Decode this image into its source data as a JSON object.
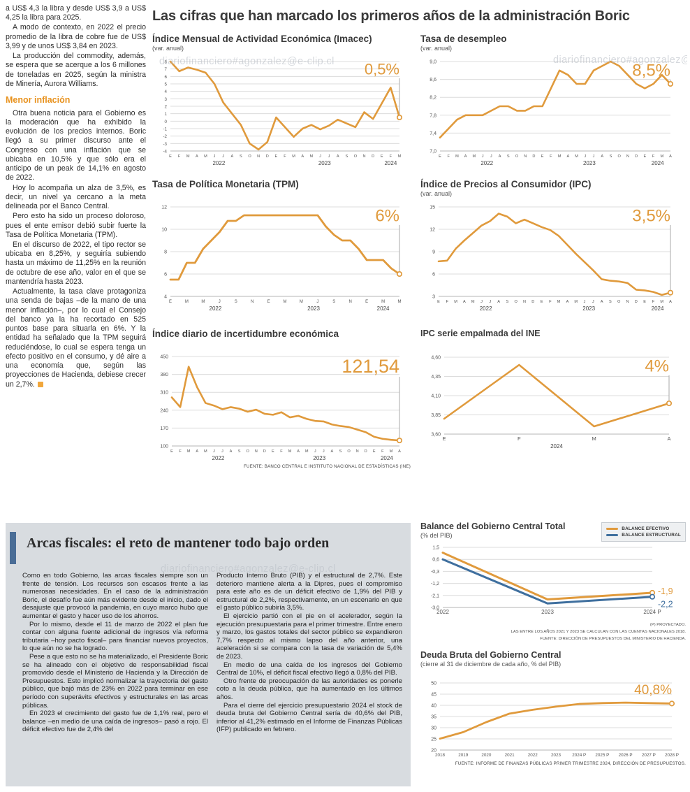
{
  "watermark": {
    "text": "diariofinanciero#agonzalez@e-clip.cl"
  },
  "main_title": "Las cifras que han marcado los primeros años de la administración Boric",
  "source_top": "FUENTE: BANCO CENTRAL E INSTITUTO NACIONAL DE ESTADÍSTICAS (INE)",
  "article_left": {
    "lead_paragraphs": [
      "a US$ 4,3 la libra y desde US$ 3,9 a US$ 4,25 la libra para 2025.",
      "A modo de contexto, en 2022 el precio promedio de la libra de cobre fue de US$ 3,99 y de unos US$ 3,84 en 2023.",
      "La producción del commodity, además, se espera que se acerque a los 6 millones de toneladas en 2025, según la ministra de Minería, Aurora Williams."
    ],
    "subhead": "Menor inflación",
    "body_paragraphs": [
      "Otra buena noticia para el Gobierno es la moderación que ha exhibido la evolución de los precios internos. Boric llegó a su primer discurso ante el Congreso con una inflación que se ubicaba en 10,5% y que sólo era el anticipo de un peak de 14,1% en agosto de 2022.",
      "Hoy lo acompaña un alza de 3,5%, es decir, un nivel ya cercano a la meta delineada por el Banco Central.",
      "Pero esto ha sido un proceso doloroso, pues el ente emisor debió subir fuerte la Tasa de Política Monetaria (TPM).",
      "En el discurso de 2022, el tipo rector se ubicaba en 8,25%, y seguiría subiendo hasta un máximo de 11,25% en la reunión de octubre de ese año, valor en el que se mantendría hasta 2023.",
      "Actualmente, la tasa clave protagoniza una senda de bajas –de la mano de una menor inflación–, por lo cual el Consejo del banco ya la ha recortado en 525 puntos base para situarla en 6%. Y la entidad ha señalado que la TPM seguirá reduciéndose, lo cual se espera tenga un efecto positivo en el consumo, y dé aire a una economía que, según las proyecciones de Hacienda, debiese crecer un 2,7%."
    ]
  },
  "bottom": {
    "headline": "Arcas fiscales: el reto de mantener todo bajo orden",
    "col1": [
      "Como en todo Gobierno, las arcas fiscales siempre son un frente de tensión. Los recursos son escasos frente a las numerosas necesidades. En el caso de la administración Boric, el desafío fue aún más evidente desde el inicio, dado el desajuste que provocó la pandemia, en cuyo marco hubo que aumentar el gasto y hacer uso de los ahorros.",
      "Por lo mismo, desde el 11 de marzo de 2022 el plan fue contar con alguna fuente adicional de ingresos vía reforma tributaria –hoy pacto fiscal– para financiar nuevos proyectos, lo que aún no se ha logrado.",
      "Pese a que esto no se ha materializado, el Presidente Boric se ha alineado con el objetivo de responsabilidad fiscal promovido desde el Ministerio de Hacienda y la Dirección de Presupuestos. Esto implicó normalizar la trayectoria del gasto público, que bajó más de 23% en 2022 para terminar en ese período con superávits efectivos y estructurales en las arcas públicas.",
      "En 2023 el crecimiento del gasto fue de 1,1% real, pero el balance –en medio de una caída de ingresos– pasó a rojo. El déficit efectivo fue de 2,4% del"
    ],
    "col2": [
      "Producto Interno Bruto (PIB) y el estructural de 2,7%. Este deterioro mantiene alerta a la Dipres, pues el compromiso para este año es de un déficit efectivo de 1,9% del PIB y estructural de 2,2%, respectivamente, en un escenario en que el gasto público subiría 3,5%.",
      "El ejercicio partió con el pie en el acelerador, según la ejecución presupuestaria para el primer trimestre. Entre enero y marzo, los gastos totales del sector público se expandieron 7,7% respecto al mismo lapso del año anterior, una aceleración si se compara con la tasa de variación de 5,4% de 2023.",
      "En medio de una caída de los ingresos del Gobierno Central de 10%, el déficit fiscal efectivo llegó a 0,8% del PIB.",
      "Otro frente de preocupación de las autoridades es ponerle coto a la deuda pública, que ha aumentado en los últimos años.",
      "Para el cierre del ejercicio presupuestario 2024 el stock de deuda bruta del Gobierno Central sería de 40,6% del PIB, inferior al 41,2% estimado en el Informe de Finanzas Públicas (IFP) publicado en febrero."
    ],
    "balance_notes": [
      "(P) PROYECTADO.",
      "LAS ENTRE LOS AÑOS 2021 Y 2023 SE CALCULAN CON LAS CUENTAS NACIONALES 2018.",
      "FUENTE: DIRECCIÓN DE PRESUPUESTOS DEL MINISTERIO DE HACIENDA."
    ],
    "debt_source": "FUENTE: INFORME DE FINANZAS PÚBLICAS PRIMER TRIMESTRE 2024, DIRECCIÓN DE PRESUPUESTOS."
  },
  "legend": [
    {
      "label": "BALANCE EFECTIVO",
      "color": "#E09A3C"
    },
    {
      "label": "BALANCE ESTRUCTURAL",
      "color": "#3F6F9E"
    }
  ],
  "colors": {
    "orange": "#E09A3C",
    "blue": "#3F6F9E"
  },
  "chart_data": [
    {
      "type": "line",
      "title": "Índice Mensual de Actividad Económica (Imacec)",
      "subtitle": "(var. anual)",
      "callout": {
        "text": "0,5%",
        "size": 22,
        "color": "#E09A3C"
      },
      "ymin": -4,
      "ymax": 8,
      "yfs": 6.2,
      "yticks": [
        {
          "v": 8,
          "l": "8"
        },
        {
          "v": 7,
          "l": "7"
        },
        {
          "v": 6,
          "l": "6"
        },
        {
          "v": 5,
          "l": "5"
        },
        {
          "v": 4,
          "l": "4"
        },
        {
          "v": 3,
          "l": "3"
        },
        {
          "v": 2,
          "l": "2"
        },
        {
          "v": 1,
          "l": "1"
        },
        {
          "v": 0,
          "l": "0"
        },
        {
          "v": -1,
          "l": "-1"
        },
        {
          "v": -2,
          "l": "-2"
        },
        {
          "v": -3,
          "l": "-3"
        },
        {
          "v": -4,
          "l": "-4"
        }
      ],
      "x": [
        "E",
        "F",
        "M",
        "A",
        "M",
        "J",
        "J",
        "A",
        "S",
        "O",
        "N",
        "D",
        "E",
        "F",
        "M",
        "A",
        "M",
        "J",
        "J",
        "A",
        "S",
        "O",
        "N",
        "D",
        "E",
        "F",
        "M"
      ],
      "xfs": 5.6,
      "year_groups": [
        {
          "label": "2022",
          "from": 0,
          "to": 11
        },
        {
          "label": "2023",
          "from": 12,
          "to": 23
        },
        {
          "label": "2024",
          "from": 24,
          "to": 26
        }
      ],
      "margins": {
        "l": 26,
        "r": 18,
        "t": 12,
        "b": 28
      },
      "pointer": true,
      "marker": true,
      "series": [
        {
          "name": "Imacec",
          "color": "#E09A3C",
          "width": 2.6,
          "values": [
            8,
            6.7,
            7.2,
            6.9,
            6.5,
            5,
            2.5,
            1,
            -0.5,
            -3,
            -3.8,
            -2.8,
            0.5,
            -0.8,
            -2.1,
            -1,
            -0.5,
            -1.1,
            -0.6,
            0.2,
            -0.3,
            -0.8,
            1.2,
            0.3,
            2.4,
            4.5,
            0.5
          ]
        }
      ]
    },
    {
      "type": "line",
      "title": "Tasa de desempleo",
      "subtitle": "(var. anual)",
      "callout": {
        "text": "8,5%",
        "size": 24,
        "color": "#E09A3C"
      },
      "ymin": 7.0,
      "ymax": 9.0,
      "yticks": [
        {
          "v": 9.0,
          "l": "9,0"
        },
        {
          "v": 8.6,
          "l": "8,6"
        },
        {
          "v": 8.2,
          "l": "8,2"
        },
        {
          "v": 7.8,
          "l": "7,8"
        },
        {
          "v": 7.4,
          "l": "7,4"
        },
        {
          "v": 7.0,
          "l": "7,0"
        }
      ],
      "x": [
        "E",
        "F",
        "M",
        "A",
        "M",
        "J",
        "J",
        "A",
        "S",
        "O",
        "N",
        "D",
        "E",
        "F",
        "M",
        "A",
        "M",
        "J",
        "J",
        "A",
        "S",
        "O",
        "N",
        "D",
        "E",
        "F",
        "M",
        "A"
      ],
      "xfs": 5.6,
      "year_groups": [
        {
          "label": "2022",
          "from": 0,
          "to": 11
        },
        {
          "label": "2023",
          "from": 12,
          "to": 23
        },
        {
          "label": "2024",
          "from": 24,
          "to": 27
        }
      ],
      "margins": {
        "l": 28,
        "r": 18,
        "t": 12,
        "b": 28
      },
      "pointer": true,
      "marker": true,
      "series": [
        {
          "name": "Tasa de desempleo",
          "color": "#E09A3C",
          "width": 2.6,
          "values": [
            7.3,
            7.5,
            7.7,
            7.8,
            7.8,
            7.8,
            7.9,
            8.0,
            8.0,
            7.9,
            7.9,
            8.0,
            8.0,
            8.4,
            8.8,
            8.7,
            8.5,
            8.5,
            8.8,
            8.9,
            9.0,
            8.9,
            8.7,
            8.5,
            8.4,
            8.5,
            8.7,
            8.5
          ]
        }
      ]
    },
    {
      "type": "line",
      "title": "Tasa de Política Monetaria (TPM)",
      "callout": {
        "text": "6%",
        "size": 24,
        "color": "#E09A3C"
      },
      "ymin": 4,
      "ymax": 12,
      "yticks": [
        {
          "v": 12,
          "l": "12"
        },
        {
          "v": 10,
          "l": "10"
        },
        {
          "v": 8,
          "l": "8"
        },
        {
          "v": 6,
          "l": "6"
        },
        {
          "v": 4,
          "l": "4"
        }
      ],
      "x": [
        "E",
        "",
        "M",
        "",
        "M",
        "",
        "J",
        "",
        "S",
        "",
        "N",
        "",
        "E",
        "",
        "M",
        "",
        "M",
        "",
        "J",
        "",
        "S",
        "",
        "N",
        "",
        "E",
        "",
        "M",
        "",
        "M"
      ],
      "xfs": 6,
      "year_groups": [
        {
          "label": "2022",
          "from": 0,
          "to": 11
        },
        {
          "label": "2023",
          "from": 12,
          "to": 23
        },
        {
          "label": "2024",
          "from": 24,
          "to": 28
        }
      ],
      "margins": {
        "l": 26,
        "r": 18,
        "t": 12,
        "b": 28
      },
      "pointer": true,
      "marker": true,
      "series": [
        {
          "name": "TPM",
          "color": "#E09A3C",
          "width": 2.8,
          "values": [
            5.5,
            5.5,
            7.0,
            7.0,
            8.25,
            9.0,
            9.75,
            10.75,
            10.75,
            11.25,
            11.25,
            11.25,
            11.25,
            11.25,
            11.25,
            11.25,
            11.25,
            11.25,
            11.25,
            10.25,
            9.5,
            9.0,
            9.0,
            8.25,
            7.25,
            7.25,
            7.25,
            6.5,
            6.0
          ]
        }
      ]
    },
    {
      "type": "line",
      "title": "Índice de Precios al Consumidor (IPC)",
      "subtitle": "(var. anual)",
      "callout": {
        "text": "3,5%",
        "size": 24,
        "color": "#E09A3C"
      },
      "ymin": 3,
      "ymax": 15,
      "yticks": [
        {
          "v": 15,
          "l": "15"
        },
        {
          "v": 12,
          "l": "12"
        },
        {
          "v": 9,
          "l": "9"
        },
        {
          "v": 6,
          "l": "6"
        },
        {
          "v": 3,
          "l": "3"
        }
      ],
      "x": [
        "E",
        "F",
        "M",
        "A",
        "M",
        "J",
        "J",
        "A",
        "S",
        "O",
        "N",
        "D",
        "E",
        "F",
        "M",
        "A",
        "M",
        "J",
        "J",
        "A",
        "S",
        "O",
        "N",
        "D",
        "E",
        "F",
        "M",
        "A"
      ],
      "xfs": 5.6,
      "year_groups": [
        {
          "label": "2022",
          "from": 0,
          "to": 11
        },
        {
          "label": "2023",
          "from": 12,
          "to": 23
        },
        {
          "label": "2024",
          "from": 24,
          "to": 27
        }
      ],
      "margins": {
        "l": 26,
        "r": 18,
        "t": 12,
        "b": 28
      },
      "pointer": true,
      "marker": true,
      "series": [
        {
          "name": "IPC",
          "color": "#E09A3C",
          "width": 2.6,
          "values": [
            7.7,
            7.8,
            9.4,
            10.5,
            11.5,
            12.5,
            13.1,
            14.1,
            13.7,
            12.8,
            13.3,
            12.8,
            12.3,
            11.9,
            11.1,
            9.9,
            8.7,
            7.6,
            6.5,
            5.3,
            5.1,
            5.0,
            4.8,
            3.9,
            3.8,
            3.6,
            3.2,
            3.5
          ]
        }
      ]
    },
    {
      "type": "line",
      "title": "Índice diario de incertidumbre económica",
      "callout": {
        "text": "121,54",
        "size": 27,
        "color": "#E09A3C"
      },
      "ymin": 100,
      "ymax": 450,
      "yticks": [
        {
          "v": 450,
          "l": "450"
        },
        {
          "v": 380,
          "l": "380"
        },
        {
          "v": 310,
          "l": "310"
        },
        {
          "v": 240,
          "l": "240"
        },
        {
          "v": 170,
          "l": "170"
        },
        {
          "v": 100,
          "l": "100"
        }
      ],
      "x": [
        "E",
        "F",
        "M",
        "A",
        "M",
        "J",
        "J",
        "A",
        "S",
        "O",
        "N",
        "D",
        "E",
        "F",
        "M",
        "A",
        "M",
        "J",
        "J",
        "A",
        "S",
        "O",
        "N",
        "D",
        "E",
        "F",
        "M",
        "A"
      ],
      "xfs": 5.6,
      "year_groups": [
        {
          "label": "2022",
          "from": 0,
          "to": 11
        },
        {
          "label": "2023",
          "from": 12,
          "to": 23
        },
        {
          "label": "2024",
          "from": 24,
          "to": 27
        }
      ],
      "margins": {
        "l": 28,
        "r": 18,
        "t": 12,
        "b": 28
      },
      "pointer": true,
      "marker": true,
      "series": [
        {
          "name": "Incertidumbre económica",
          "color": "#E09A3C",
          "width": 2.6,
          "values": [
            290,
            252,
            410,
            330,
            268,
            258,
            244,
            252,
            246,
            234,
            242,
            226,
            222,
            232,
            212,
            218,
            206,
            198,
            196,
            184,
            178,
            174,
            164,
            154,
            136,
            128,
            124,
            121.54
          ]
        }
      ]
    },
    {
      "type": "line",
      "title": "IPC serie empalmada del INE",
      "callout": {
        "text": "4%",
        "size": 24,
        "color": "#E09A3C"
      },
      "ymin": 3.6,
      "ymax": 4.6,
      "yticks": [
        {
          "v": 4.6,
          "l": "4,60"
        },
        {
          "v": 4.35,
          "l": "4,35"
        },
        {
          "v": 4.1,
          "l": "4,10"
        },
        {
          "v": 3.85,
          "l": "3,85"
        },
        {
          "v": 3.6,
          "l": "3,60"
        }
      ],
      "x": [
        "E",
        "F",
        "M",
        "A"
      ],
      "xfs": 7.5,
      "year_groups": [
        {
          "label": "2024",
          "from": 0,
          "to": 3
        }
      ],
      "margins": {
        "l": 34,
        "r": 20,
        "t": 14,
        "b": 28
      },
      "pointer": true,
      "marker": true,
      "series": [
        {
          "name": "IPC serie empalmada",
          "color": "#E09A3C",
          "width": 2.6,
          "values": [
            3.8,
            4.5,
            3.7,
            4.0
          ]
        }
      ]
    },
    {
      "type": "line",
      "title": "Balance del Gobierno Central Total",
      "subtitle": "(% del PIB)",
      "ymin": -3.0,
      "ymax": 1.5,
      "yticks": [
        {
          "v": 1.5,
          "l": "1,5"
        },
        {
          "v": 0.6,
          "l": "0,6"
        },
        {
          "v": -0.3,
          "l": "-0,3"
        },
        {
          "v": -1.2,
          "l": "-1,2"
        },
        {
          "v": -2.1,
          "l": "-2,1"
        },
        {
          "v": -3.0,
          "l": "-3,0"
        }
      ],
      "x": [
        "2022",
        "2023",
        "2024 P"
      ],
      "xfs": 8,
      "margins": {
        "l": 32,
        "r": 48,
        "t": 8,
        "b": 18
      },
      "pointer": false,
      "marker": true,
      "series": [
        {
          "name": "BALANCE EFECTIVO",
          "color": "#E09A3C",
          "width": 3,
          "values": [
            1.1,
            -2.4,
            -1.9
          ]
        },
        {
          "name": "BALANCE ESTRUCTURAL",
          "color": "#3F6F9E",
          "width": 3,
          "values": [
            0.6,
            -2.7,
            -2.2
          ]
        }
      ],
      "end_labels": [
        {
          "text": "-1,9",
          "color": "#E09A3C",
          "dy": -2
        },
        {
          "text": "-2,2",
          "color": "#3F6F9E",
          "dy": 11
        }
      ]
    },
    {
      "type": "line",
      "title": "Deuda Bruta del Gobierno Central",
      "subtitle": "(cierre al 31 de diciembre de cada año, % del PIB)",
      "callout": {
        "text": "40,8%",
        "size": 19,
        "color": "#E09A3C"
      },
      "ymin": 20,
      "ymax": 50,
      "yticks": [
        {
          "v": 50,
          "l": "50"
        },
        {
          "v": 45,
          "l": "45"
        },
        {
          "v": 40,
          "l": "40"
        },
        {
          "v": 35,
          "l": "35"
        },
        {
          "v": 30,
          "l": "30"
        },
        {
          "v": 25,
          "l": "25"
        },
        {
          "v": 20,
          "l": "20"
        }
      ],
      "x": [
        "2018",
        "2019",
        "2020",
        "2021",
        "2022",
        "2023",
        "2024 P",
        "2025 P",
        "2026 P",
        "2027 P",
        "2028 P"
      ],
      "xfs": 6.3,
      "margins": {
        "l": 28,
        "r": 20,
        "t": 20,
        "b": 16
      },
      "pointer": false,
      "marker": true,
      "series": [
        {
          "name": "Deuda bruta",
          "color": "#E09A3C",
          "width": 2.8,
          "values": [
            25.1,
            28,
            32.5,
            36.3,
            38,
            39.4,
            40.6,
            41,
            41.2,
            41,
            40.8
          ]
        }
      ]
    }
  ]
}
